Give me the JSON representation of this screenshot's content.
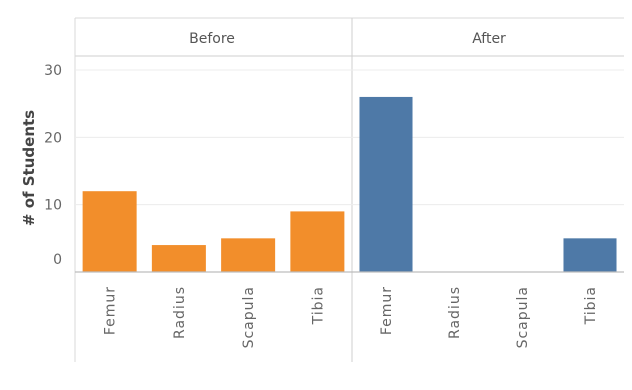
{
  "chart_data": {
    "type": "bar",
    "ylabel": "# of Students",
    "ylim": [
      0,
      30
    ],
    "yticks": [
      "0",
      "10",
      "20",
      "30"
    ],
    "grid": true,
    "colors": {
      "Before": "#f28e2b",
      "After": "#4e79a7"
    },
    "panels": [
      {
        "name": "Before",
        "categories": [
          "Femur",
          "Radius",
          "Scapula",
          "Tibia"
        ],
        "values": [
          12,
          4,
          5,
          9
        ]
      },
      {
        "name": "After",
        "categories": [
          "Femur",
          "Radius",
          "Scapula",
          "Tibia"
        ],
        "values": [
          26,
          0,
          0,
          5
        ]
      }
    ]
  }
}
